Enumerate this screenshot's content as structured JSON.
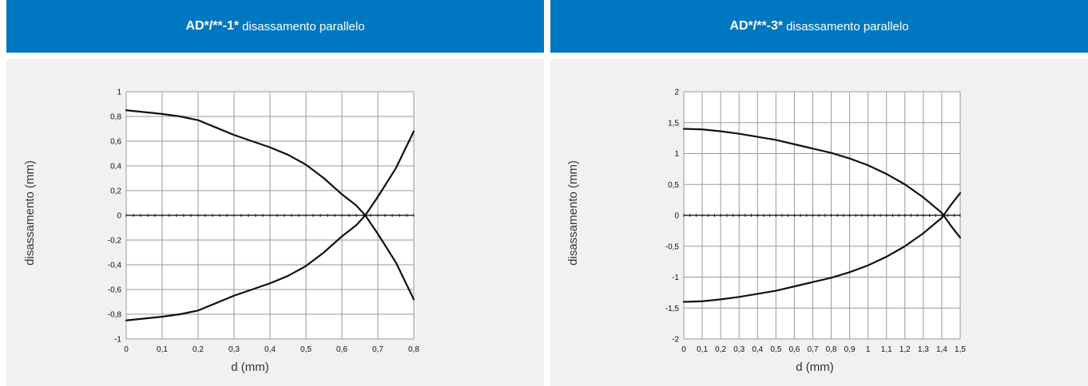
{
  "chart_data": [
    {
      "type": "line",
      "title_strong": "AD*/**-1*",
      "title_rest": "disassamento parallelo",
      "xlabel": "d (mm)",
      "ylabel": "disassamento (mm)",
      "xlim": [
        0,
        0.8
      ],
      "ylim": [
        -1,
        1
      ],
      "x_ticks": [
        {
          "value": 0,
          "label": "0"
        },
        {
          "value": 0.1,
          "label": "0,1"
        },
        {
          "value": 0.2,
          "label": "0,2"
        },
        {
          "value": 0.3,
          "label": "0,3"
        },
        {
          "value": 0.4,
          "label": "0,4"
        },
        {
          "value": 0.5,
          "label": "0,5"
        },
        {
          "value": 0.6,
          "label": "0,6"
        },
        {
          "value": 0.7,
          "label": "0,7"
        },
        {
          "value": 0.8,
          "label": "0,8"
        }
      ],
      "y_ticks": [
        {
          "value": 1,
          "label": "1"
        },
        {
          "value": 0.8,
          "label": "0,8"
        },
        {
          "value": 0.6,
          "label": "0,6"
        },
        {
          "value": 0.4,
          "label": "0,4"
        },
        {
          "value": 0.2,
          "label": "0,2"
        },
        {
          "value": 0,
          "label": "0"
        },
        {
          "value": -0.2,
          "label": "-0,2"
        },
        {
          "value": -0.4,
          "label": "-0,4"
        },
        {
          "value": -0.6,
          "label": "-0,6"
        },
        {
          "value": -0.8,
          "label": "-0,8"
        },
        {
          "value": -1,
          "label": "-1"
        }
      ],
      "grid": true,
      "series": [
        {
          "x": [
            0,
            0.1,
            0.15,
            0.2,
            0.25,
            0.3,
            0.35,
            0.4,
            0.45,
            0.5,
            0.55,
            0.6,
            0.64,
            0.665,
            0.7,
            0.75,
            0.8
          ],
          "y": [
            0.85,
            0.82,
            0.8,
            0.77,
            0.71,
            0.65,
            0.6,
            0.55,
            0.49,
            0.41,
            0.3,
            0.17,
            0.08,
            0.0,
            -0.15,
            -0.38,
            -0.68
          ]
        },
        {
          "x": [
            0,
            0.1,
            0.15,
            0.2,
            0.25,
            0.3,
            0.35,
            0.4,
            0.45,
            0.5,
            0.55,
            0.6,
            0.64,
            0.665,
            0.7,
            0.75,
            0.8
          ],
          "y": [
            -0.85,
            -0.82,
            -0.8,
            -0.77,
            -0.71,
            -0.65,
            -0.6,
            -0.55,
            -0.49,
            -0.41,
            -0.3,
            -0.17,
            -0.08,
            0.0,
            0.15,
            0.38,
            0.68
          ]
        }
      ]
    },
    {
      "type": "line",
      "title_strong": "AD*/**-3*",
      "title_rest": "disassamento parallelo",
      "xlabel": "d (mm)",
      "ylabel": "disassamento (mm)",
      "xlim": [
        0,
        1.5
      ],
      "ylim": [
        -2,
        2
      ],
      "x_ticks": [
        {
          "value": 0,
          "label": "0"
        },
        {
          "value": 0.1,
          "label": "0,1"
        },
        {
          "value": 0.2,
          "label": "0,2"
        },
        {
          "value": 0.3,
          "label": "0,3"
        },
        {
          "value": 0.4,
          "label": "0,4"
        },
        {
          "value": 0.5,
          "label": "0,5"
        },
        {
          "value": 0.6,
          "label": "0,6"
        },
        {
          "value": 0.7,
          "label": "0,7"
        },
        {
          "value": 0.8,
          "label": "0,8"
        },
        {
          "value": 0.9,
          "label": "0,9"
        },
        {
          "value": 1.0,
          "label": "1"
        },
        {
          "value": 1.1,
          "label": "1,1"
        },
        {
          "value": 1.2,
          "label": "1,2"
        },
        {
          "value": 1.3,
          "label": "1,3"
        },
        {
          "value": 1.4,
          "label": "1,4"
        },
        {
          "value": 1.5,
          "label": "1,5"
        }
      ],
      "y_ticks": [
        {
          "value": 2,
          "label": "2"
        },
        {
          "value": 1.5,
          "label": "1,5"
        },
        {
          "value": 1,
          "label": "1"
        },
        {
          "value": 0.5,
          "label": "0,5"
        },
        {
          "value": 0,
          "label": "0"
        },
        {
          "value": -0.5,
          "label": "-0,5"
        },
        {
          "value": -1,
          "label": "-1"
        },
        {
          "value": -1.5,
          "label": "-1,5"
        },
        {
          "value": -2,
          "label": "-2"
        }
      ],
      "grid": true,
      "series": [
        {
          "x": [
            0,
            0.1,
            0.2,
            0.3,
            0.4,
            0.5,
            0.6,
            0.7,
            0.8,
            0.9,
            1.0,
            1.1,
            1.2,
            1.3,
            1.4,
            1.45,
            1.5
          ],
          "y": [
            1.4,
            1.39,
            1.36,
            1.32,
            1.27,
            1.22,
            1.15,
            1.08,
            1.01,
            0.92,
            0.81,
            0.67,
            0.5,
            0.29,
            0.04,
            -0.17,
            -0.36
          ]
        },
        {
          "x": [
            0,
            0.1,
            0.2,
            0.3,
            0.4,
            0.5,
            0.6,
            0.7,
            0.8,
            0.9,
            1.0,
            1.1,
            1.2,
            1.3,
            1.4,
            1.45,
            1.5
          ],
          "y": [
            -1.4,
            -1.39,
            -1.36,
            -1.32,
            -1.27,
            -1.22,
            -1.15,
            -1.08,
            -1.01,
            -0.92,
            -0.81,
            -0.67,
            -0.5,
            -0.29,
            -0.04,
            0.17,
            0.36
          ]
        }
      ]
    }
  ]
}
